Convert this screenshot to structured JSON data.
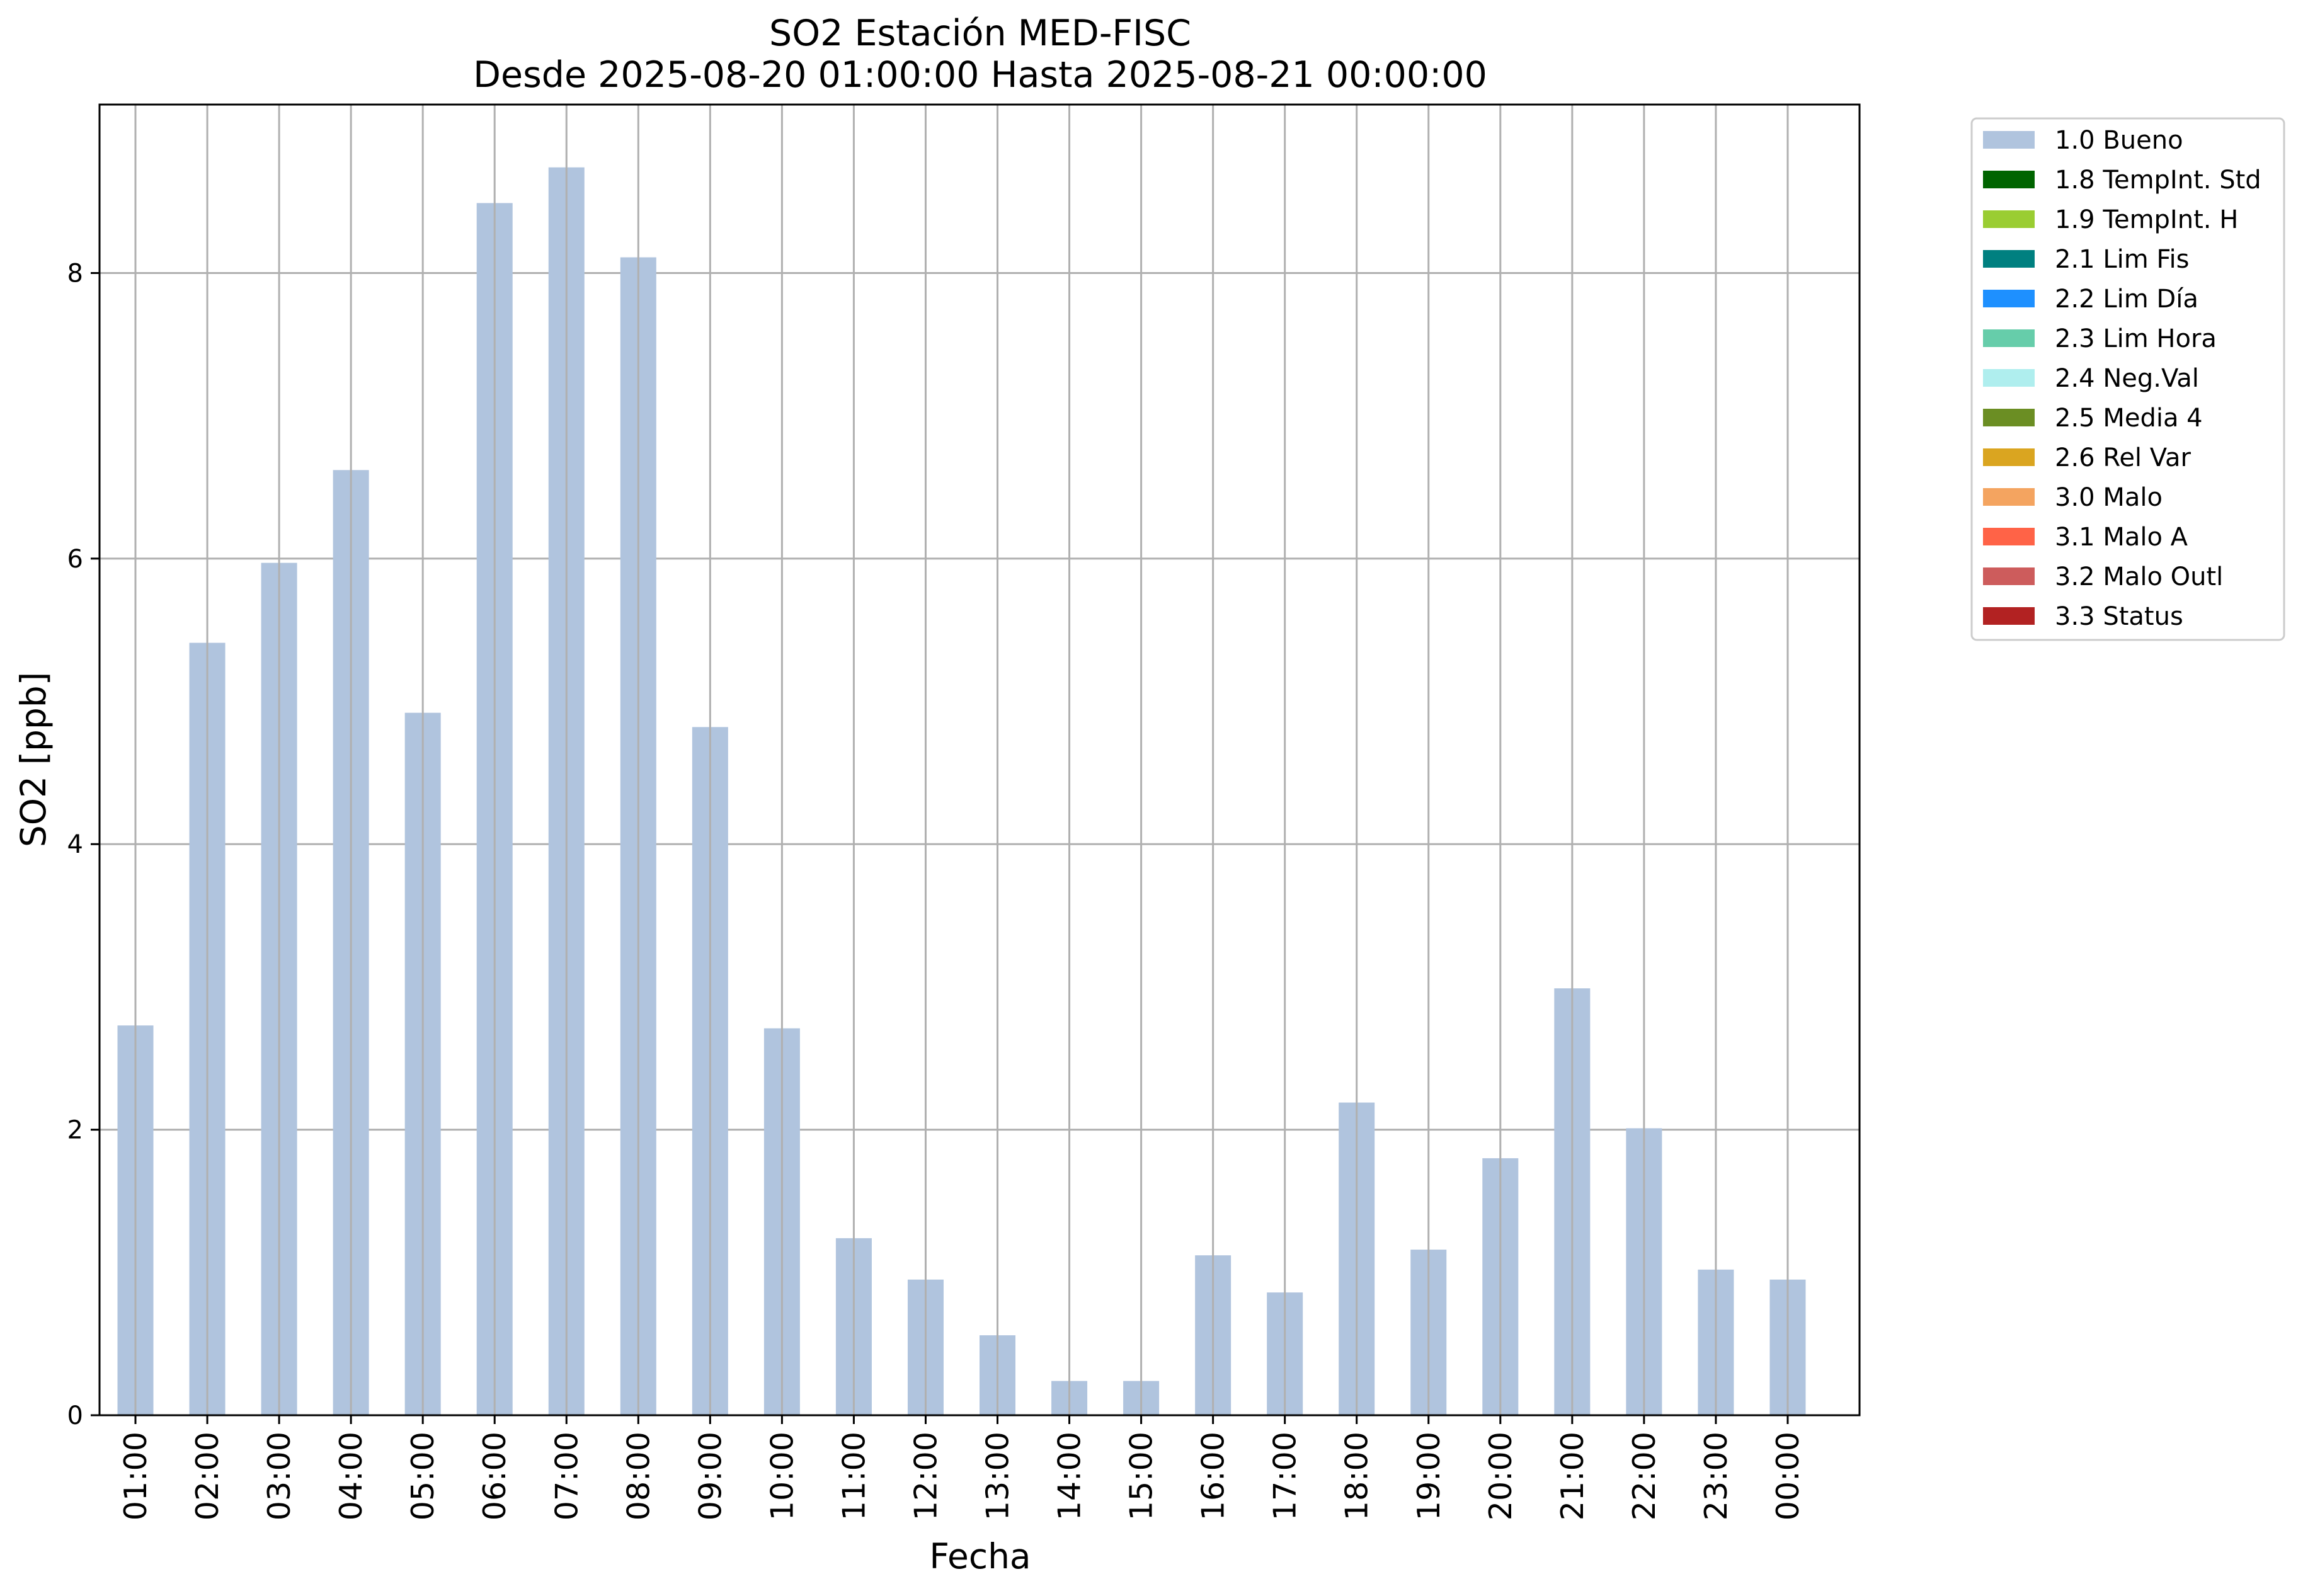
{
  "chart_data": {
    "type": "bar",
    "title": "SO2 Estación MED-FISC",
    "subtitle": "Desde 2025-08-20 01:00:00 Hasta 2025-08-21 00:00:00",
    "xlabel": "Fecha",
    "ylabel": "SO2 [ppb]",
    "ylim": [
      0,
      9.18
    ],
    "yticks": [
      0,
      2,
      4,
      6,
      8
    ],
    "grid": true,
    "legend_position": "outside-right",
    "categories": [
      "01:00",
      "02:00",
      "03:00",
      "04:00",
      "05:00",
      "06:00",
      "07:00",
      "08:00",
      "09:00",
      "10:00",
      "11:00",
      "12:00",
      "13:00",
      "14:00",
      "15:00",
      "16:00",
      "17:00",
      "18:00",
      "19:00",
      "20:00",
      "21:00",
      "22:00",
      "23:00",
      "00:00"
    ],
    "series": [
      {
        "name": "1.0 Bueno",
        "color": "#b0c4de",
        "values": [
          2.73,
          5.41,
          5.97,
          6.62,
          4.92,
          8.49,
          8.74,
          8.11,
          4.82,
          2.71,
          1.24,
          0.95,
          0.56,
          0.24,
          0.24,
          1.12,
          0.86,
          2.19,
          1.16,
          1.8,
          2.99,
          2.01,
          1.02,
          0.95
        ]
      }
    ],
    "legend": [
      {
        "label": "1.0 Bueno",
        "color": "#b0c4de"
      },
      {
        "label": "1.8 TempInt. Std",
        "color": "#006400"
      },
      {
        "label": "1.9 TempInt. H",
        "color": "#9acd32"
      },
      {
        "label": "2.1 Lim Fis",
        "color": "#008080"
      },
      {
        "label": "2.2 Lim Día",
        "color": "#1e90ff"
      },
      {
        "label": "2.3 Lim Hora",
        "color": "#66cdaa"
      },
      {
        "label": "2.4 Neg.Val",
        "color": "#afeeee"
      },
      {
        "label": "2.5 Media 4",
        "color": "#6b8e23"
      },
      {
        "label": "2.6 Rel Var",
        "color": "#daa520"
      },
      {
        "label": "3.0 Malo",
        "color": "#f4a460"
      },
      {
        "label": "3.1 Malo A",
        "color": "#ff6347"
      },
      {
        "label": "3.2 Malo Outl",
        "color": "#cd5c5c"
      },
      {
        "label": "3.3 Status",
        "color": "#b22222"
      }
    ]
  }
}
